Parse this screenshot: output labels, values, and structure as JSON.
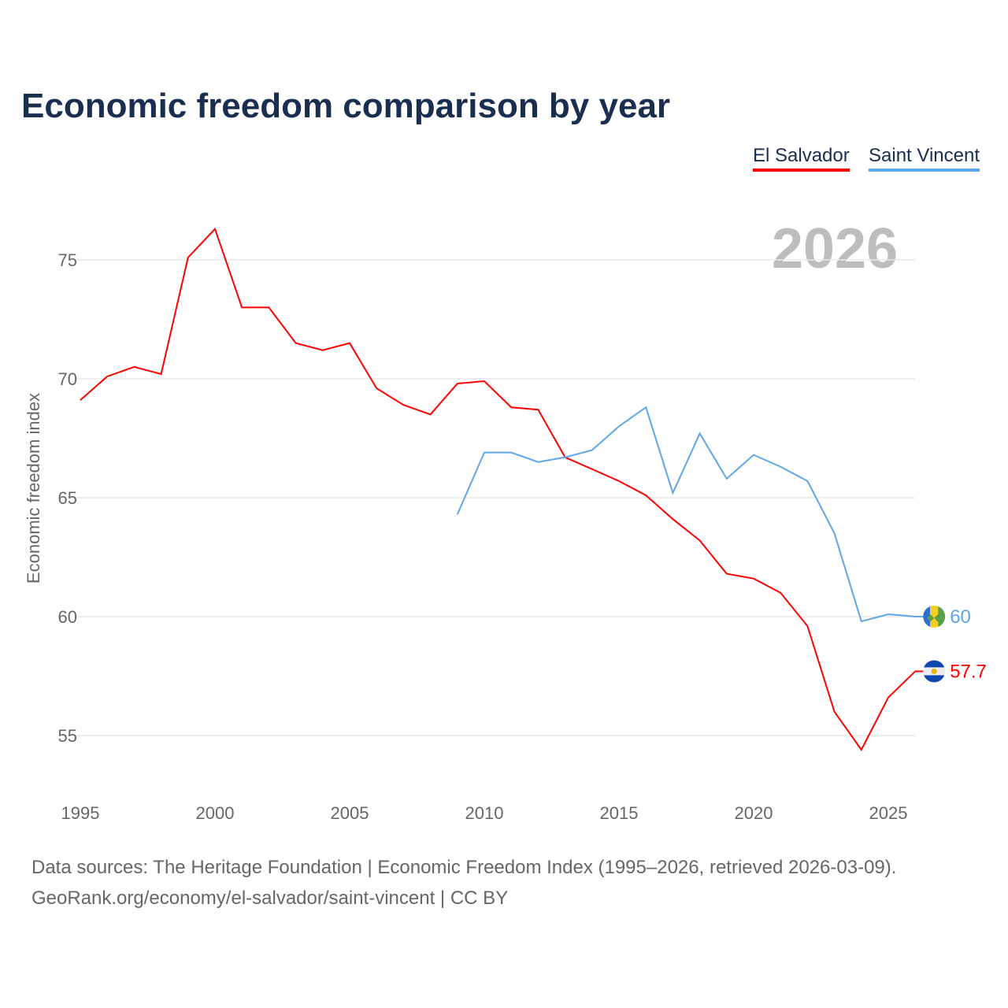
{
  "chart_data": {
    "type": "line",
    "title": "Economic freedom comparison by year",
    "ylabel": "Economic freedom index",
    "xlabel": "",
    "ylim": [
      52.5,
      78
    ],
    "xlim": [
      1995,
      2026
    ],
    "yticks": [
      55,
      60,
      65,
      70,
      75
    ],
    "xticks": [
      1995,
      2000,
      2005,
      2010,
      2015,
      2020,
      2025
    ],
    "grid": true,
    "watermark_year": "2026",
    "legend_placement": "top-right",
    "series": [
      {
        "name": "El Salvador",
        "color": "#ff0000",
        "end_label": "57.7",
        "x": [
          1995,
          1996,
          1997,
          1998,
          1999,
          2000,
          2001,
          2002,
          2003,
          2004,
          2005,
          2006,
          2007,
          2008,
          2009,
          2010,
          2011,
          2012,
          2013,
          2014,
          2015,
          2016,
          2017,
          2018,
          2019,
          2020,
          2021,
          2022,
          2023,
          2024,
          2025,
          2026
        ],
        "values": [
          69.1,
          70.1,
          70.5,
          70.2,
          75.1,
          76.3,
          73.0,
          73.0,
          71.5,
          71.2,
          71.5,
          69.6,
          68.9,
          68.5,
          69.8,
          69.9,
          68.8,
          68.7,
          66.7,
          66.2,
          65.7,
          65.1,
          64.1,
          63.2,
          61.8,
          61.6,
          61.0,
          59.6,
          56.0,
          54.4,
          56.6,
          57.7
        ]
      },
      {
        "name": "Saint Vincent",
        "color": "#5ea5ea",
        "end_label": "60",
        "x": [
          2009,
          2010,
          2011,
          2012,
          2013,
          2014,
          2015,
          2016,
          2017,
          2018,
          2019,
          2020,
          2021,
          2022,
          2023,
          2024,
          2025,
          2026
        ],
        "values": [
          64.3,
          66.9,
          66.9,
          66.5,
          66.7,
          67.0,
          68.0,
          68.8,
          65.2,
          67.7,
          65.8,
          66.8,
          66.3,
          65.7,
          63.5,
          59.8,
          60.1,
          60.0
        ]
      }
    ]
  },
  "source_line1": "Data sources: The Heritage Foundation | Economic Freedom Index (1995–2026, retrieved 2026-03-09).",
  "source_line2": "GeoRank.org/economy/el-salvador/saint-vincent | CC BY"
}
